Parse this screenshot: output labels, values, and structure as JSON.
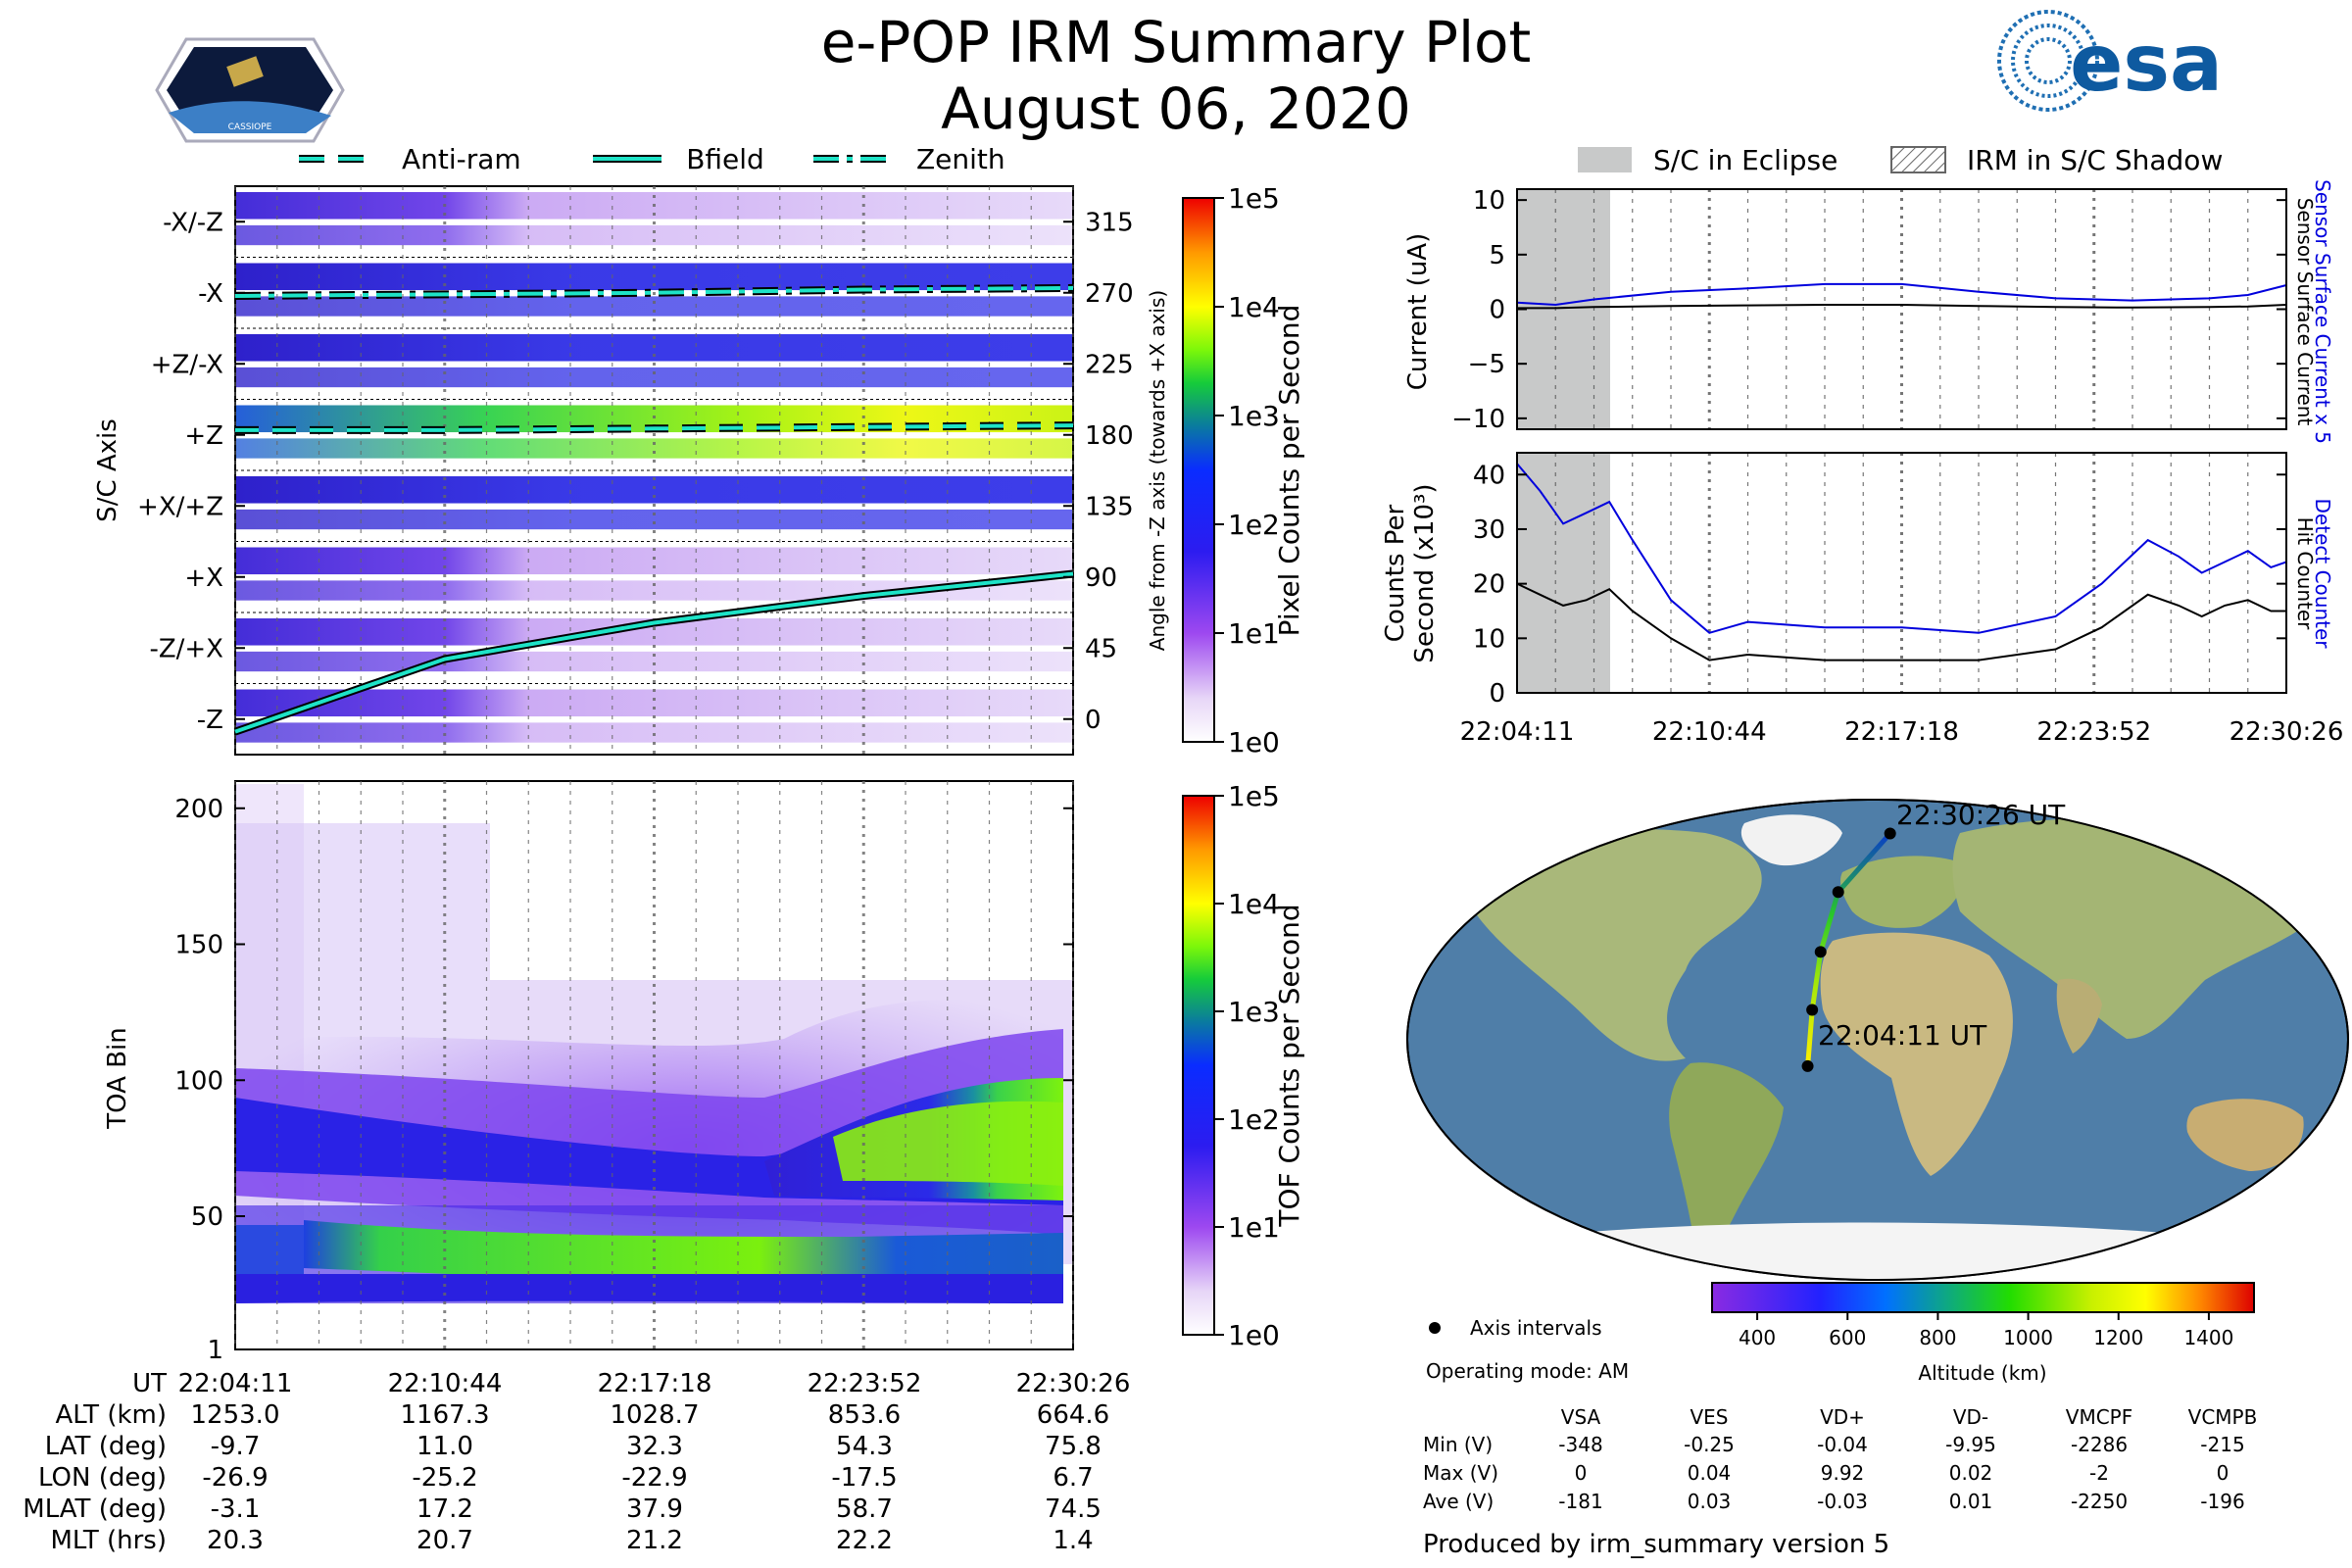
{
  "header": {
    "title": "e-POP IRM Summary Plot",
    "date": "August 06, 2020",
    "mission_logo_text": "CASSIOPE",
    "agency_logo_text": "esa"
  },
  "legends": {
    "top_left": [
      "Anti-ram",
      "Bfield",
      "Zenith"
    ],
    "top_right": [
      "S/C in Eclipse",
      "IRM in S/C Shadow"
    ]
  },
  "time_ticks": [
    "22:04:11",
    "22:10:44",
    "22:17:18",
    "22:23:52",
    "22:30:26"
  ],
  "chart_data": [
    {
      "id": "pixel_spectrogram",
      "type": "heatmap",
      "ylabel": "S/C Axis",
      "y_tick_labels": [
        "-X/-Z",
        "-X",
        "+Z/-X",
        "+Z",
        "+X/+Z",
        "+X",
        "-Z/+X",
        "-Z"
      ],
      "right_ylabel": "Angle from -Z axis (towards +X axis)",
      "right_ticks": [
        315,
        270,
        225,
        180,
        135,
        90,
        45,
        0
      ],
      "colorbar_label": "Pixel Counts per Second",
      "colorbar_ticks": [
        "1e5",
        "1e4",
        "1e3",
        "1e2",
        "1e1",
        "1e0"
      ],
      "series": [
        {
          "name": "Zenith",
          "angle_deg": [
            268,
            269,
            270,
            272,
            273
          ]
        },
        {
          "name": "Anti-ram",
          "angle_deg": [
            183,
            183,
            184,
            185,
            186
          ]
        },
        {
          "name": "Bfield",
          "angle_deg": [
            -8,
            38,
            61,
            78,
            92
          ]
        }
      ]
    },
    {
      "id": "tof_spectrogram",
      "type": "heatmap",
      "ylabel": "TOA Bin",
      "y_ticks": [
        1,
        50,
        100,
        150,
        200
      ],
      "ylim": [
        1,
        210
      ],
      "colorbar_label": "TOF Counts per Second",
      "colorbar_ticks": [
        "1e5",
        "1e4",
        "1e3",
        "1e2",
        "1e1",
        "1e0"
      ]
    },
    {
      "id": "current",
      "type": "line",
      "ylabel": "Current (uA)",
      "right_label_1": "Sensor Surface Current x 5",
      "right_label_2": "Sensor Surface Current",
      "ylim": [
        -11,
        11
      ],
      "y_ticks": [
        10,
        5,
        0,
        -5,
        -10
      ],
      "x": [
        0,
        0.05,
        0.1,
        0.2,
        0.3,
        0.4,
        0.5,
        0.6,
        0.7,
        0.8,
        0.9,
        0.95,
        1.0
      ],
      "series": [
        {
          "name": "Sensor Surface Current x 5",
          "color": "#0000dd",
          "values": [
            0.6,
            0.4,
            0.9,
            1.6,
            1.9,
            2.3,
            2.3,
            1.6,
            1.0,
            0.8,
            1.0,
            1.3,
            2.2
          ]
        },
        {
          "name": "Sensor Surface Current",
          "color": "#000000",
          "values": [
            0.1,
            0.1,
            0.2,
            0.3,
            0.35,
            0.4,
            0.4,
            0.3,
            0.2,
            0.15,
            0.2,
            0.25,
            0.4
          ]
        }
      ]
    },
    {
      "id": "counts",
      "type": "line",
      "ylabel": "Counts Per Second (x10³)",
      "right_label_1": "Detect Counter",
      "right_label_2": "Hit Counter",
      "ylim": [
        0,
        44
      ],
      "y_ticks": [
        0,
        10,
        20,
        30,
        40
      ],
      "x": [
        0,
        0.03,
        0.06,
        0.09,
        0.12,
        0.15,
        0.2,
        0.25,
        0.3,
        0.4,
        0.5,
        0.6,
        0.7,
        0.76,
        0.82,
        0.86,
        0.89,
        0.92,
        0.95,
        0.98,
        1.0
      ],
      "series": [
        {
          "name": "Detect Counter",
          "color": "#0000dd",
          "values": [
            42,
            37,
            31,
            33,
            35,
            28,
            17,
            11,
            13,
            12,
            12,
            11,
            14,
            20,
            28,
            25,
            22,
            24,
            26,
            23,
            24
          ]
        },
        {
          "name": "Hit Counter",
          "color": "#000000",
          "values": [
            20,
            18,
            16,
            17,
            19,
            15,
            10,
            6,
            7,
            6,
            6,
            6,
            8,
            12,
            18,
            16,
            14,
            16,
            17,
            15,
            15
          ]
        }
      ]
    },
    {
      "id": "ground_track",
      "type": "scatter",
      "start_label": "22:04:11 UT",
      "end_label": "22:30:26 UT",
      "lon": [
        -26.9,
        -25.2,
        -22.9,
        -17.5,
        6.7
      ],
      "lat": [
        -9.7,
        11.0,
        32.3,
        54.3,
        75.8
      ],
      "alt_km": [
        1253.0,
        1167.3,
        1028.7,
        853.6,
        664.6
      ],
      "colorbar_label": "Altitude (km)",
      "colorbar_ticks": [
        400,
        600,
        800,
        1000,
        1200,
        1400
      ],
      "colorbar_range": [
        300,
        1500
      ]
    }
  ],
  "ephemeris": {
    "rows": [
      {
        "label": "UT",
        "values": [
          "22:04:11",
          "22:10:44",
          "22:17:18",
          "22:23:52",
          "22:30:26"
        ]
      },
      {
        "label": "ALT (km)",
        "values": [
          "1253.0",
          "1167.3",
          "1028.7",
          "853.6",
          "664.6"
        ]
      },
      {
        "label": "LAT (deg)",
        "values": [
          "-9.7",
          "11.0",
          "32.3",
          "54.3",
          "75.8"
        ]
      },
      {
        "label": "LON (deg)",
        "values": [
          "-26.9",
          "-25.2",
          "-22.9",
          "-17.5",
          "6.7"
        ]
      },
      {
        "label": "MLAT (deg)",
        "values": [
          "-3.1",
          "17.2",
          "37.9",
          "58.7",
          "74.5"
        ]
      },
      {
        "label": "MLT (hrs)",
        "values": [
          "20.3",
          "20.7",
          "21.2",
          "22.2",
          "1.4"
        ]
      }
    ]
  },
  "info": {
    "axis_intervals": "Axis intervals",
    "operating_mode": "Operating mode: AM",
    "voltage_headers": [
      "VSA",
      "VES",
      "VD+",
      "VD-",
      "VMCPF",
      "VCMPB"
    ],
    "voltage_rows": [
      {
        "label": "Min (V)",
        "values": [
          "-348",
          "-0.25",
          "-0.04",
          "-9.95",
          "-2286",
          "-215"
        ]
      },
      {
        "label": "Max (V)",
        "values": [
          "0",
          "0.04",
          "9.92",
          "0.02",
          "-2",
          "0"
        ]
      },
      {
        "label": "Ave (V)",
        "values": [
          "-181",
          "0.03",
          "-0.03",
          "0.01",
          "-2250",
          "-196"
        ]
      }
    ],
    "produced_by": "Produced by irm_summary version 5"
  },
  "colors": {
    "track_line": "#1ee3c7",
    "current_blue": "#0000dd",
    "eclipse": "#c8c9c9",
    "ocean": "#4f7ea8",
    "land": "#a9b87a"
  }
}
